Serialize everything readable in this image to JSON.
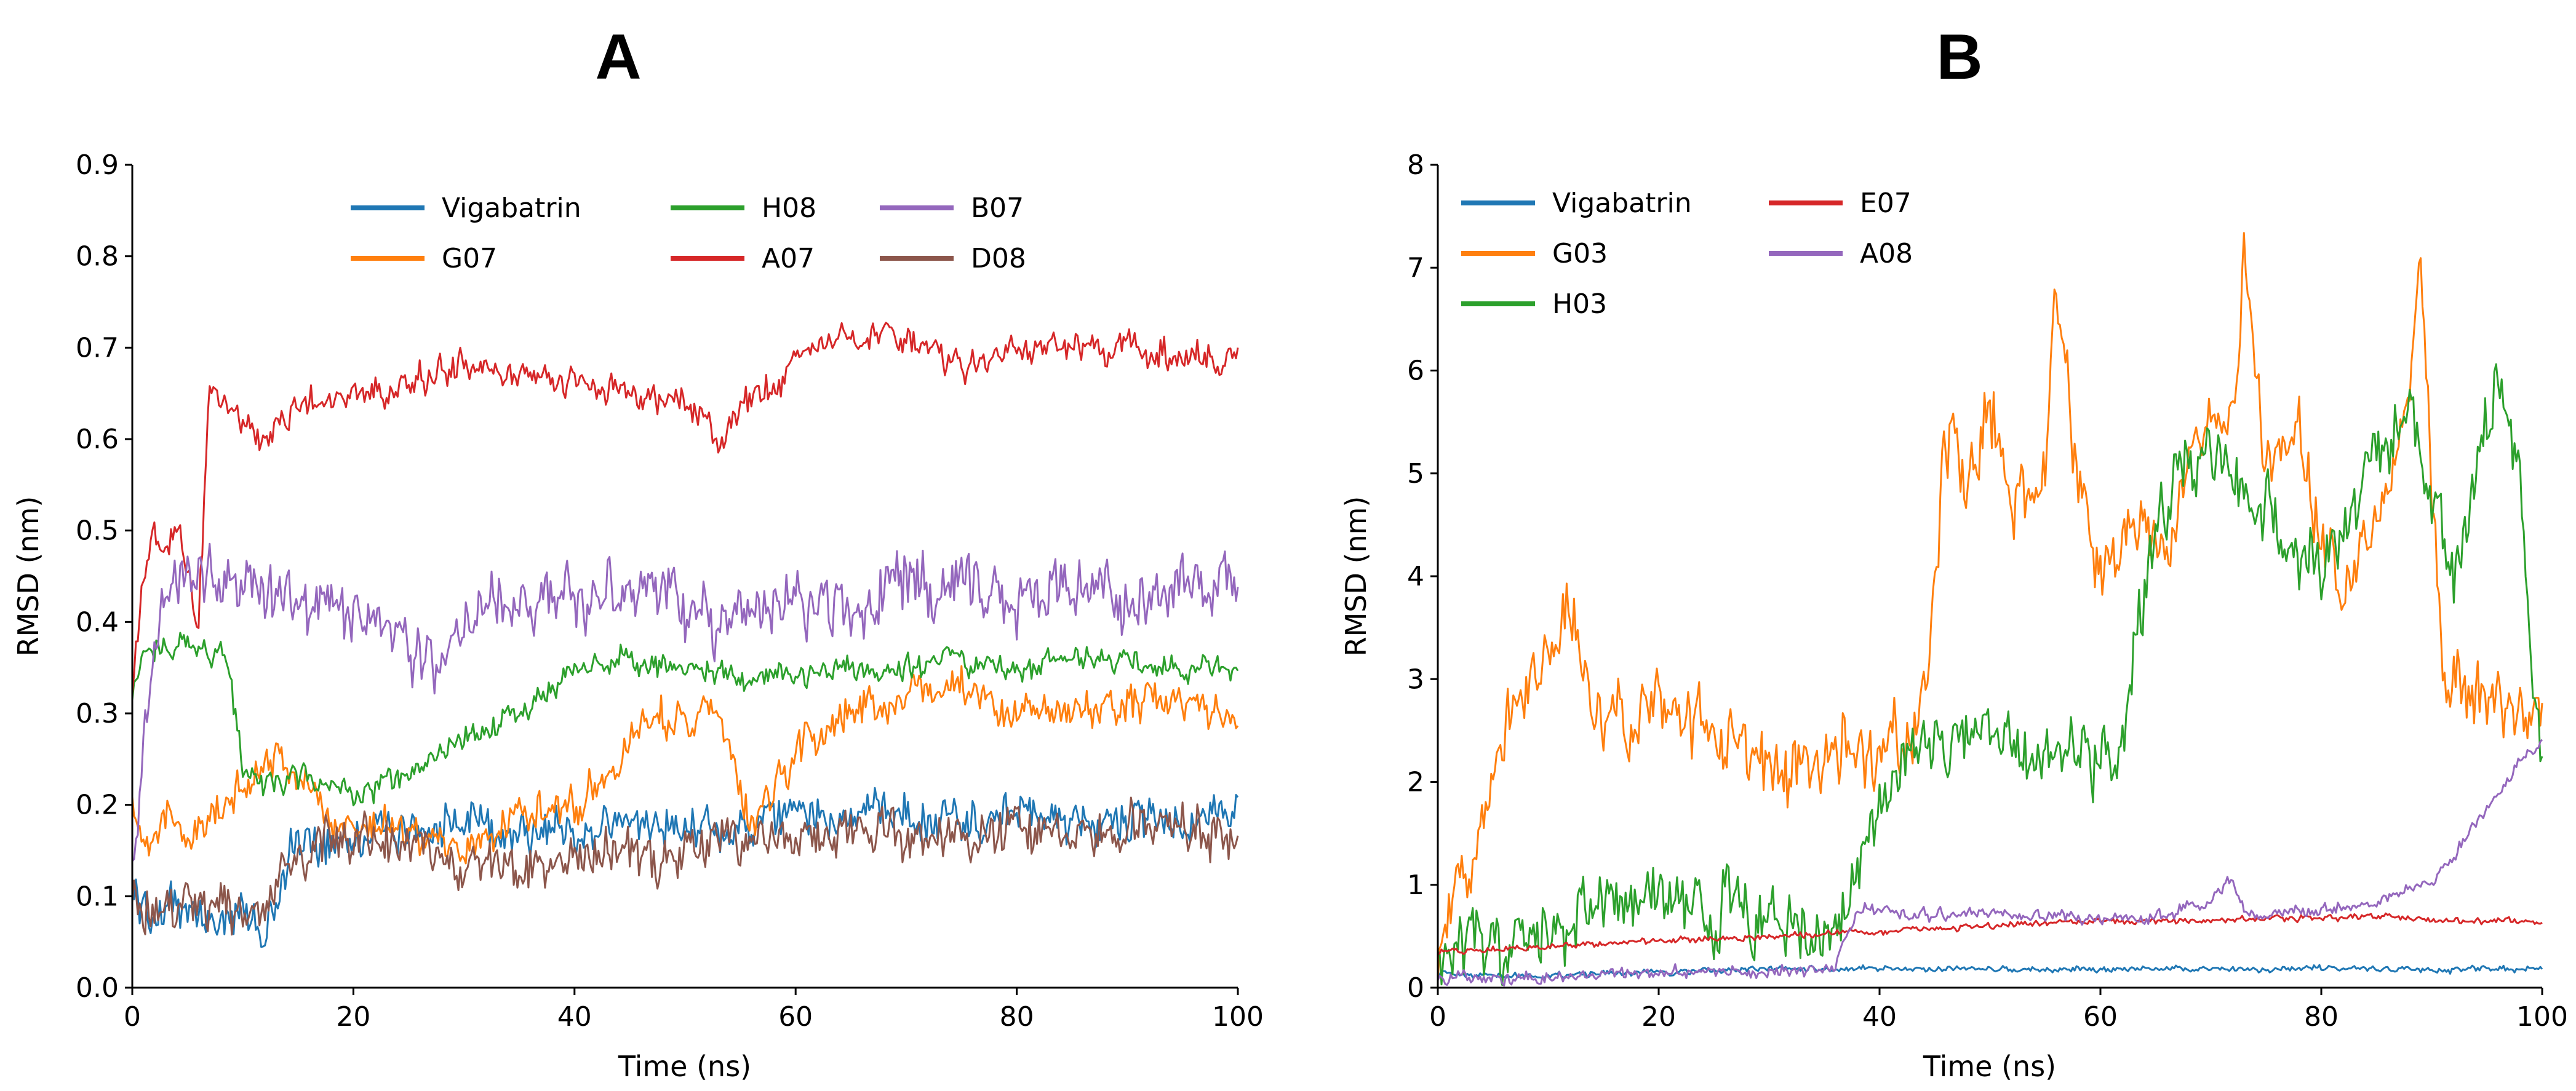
{
  "chart_data": [
    {
      "type": "line",
      "panel_label": "A",
      "title": "",
      "xlabel": "Time (ns)",
      "ylabel": "RMSD (nm)",
      "xlim": [
        0,
        100
      ],
      "ylim": [
        0,
        0.9
      ],
      "xticks": [
        0,
        20,
        40,
        60,
        80,
        100
      ],
      "xtick_labels": [
        "0",
        "20",
        "40",
        "60",
        "80",
        "100"
      ],
      "yticks": [
        0.0,
        0.1,
        0.2,
        0.3,
        0.4,
        0.5,
        0.6,
        0.7,
        0.8,
        0.9
      ],
      "ytick_labels": [
        "0.0",
        "0.1",
        "0.2",
        "0.3",
        "0.4",
        "0.5",
        "0.6",
        "0.7",
        "0.8",
        "0.9"
      ],
      "grid": false,
      "legend_position": "top-center",
      "series": [
        {
          "name": "Vigabatrin",
          "color": "#1f77b4",
          "x": [
            0,
            2,
            5,
            8,
            10,
            12,
            14,
            16,
            20,
            25,
            30,
            35,
            40,
            45,
            50,
            55,
            60,
            65,
            70,
            75,
            80,
            85,
            90,
            95,
            100
          ],
          "values": [
            0.1,
            0.08,
            0.09,
            0.07,
            0.08,
            0.06,
            0.14,
            0.16,
            0.17,
            0.17,
            0.18,
            0.17,
            0.17,
            0.18,
            0.18,
            0.17,
            0.19,
            0.19,
            0.19,
            0.18,
            0.19,
            0.18,
            0.18,
            0.18,
            0.19
          ],
          "noise": 0.025
        },
        {
          "name": "G07",
          "color": "#ff7f0e",
          "x": [
            0,
            1,
            3,
            6,
            9,
            12,
            15,
            18,
            22,
            26,
            30,
            35,
            40,
            44,
            47,
            50,
            53,
            56,
            60,
            64,
            68,
            72,
            76,
            80,
            85,
            90,
            95,
            100
          ],
          "values": [
            0.2,
            0.17,
            0.18,
            0.17,
            0.2,
            0.26,
            0.23,
            0.18,
            0.18,
            0.17,
            0.15,
            0.19,
            0.2,
            0.25,
            0.3,
            0.29,
            0.3,
            0.17,
            0.26,
            0.3,
            0.31,
            0.33,
            0.32,
            0.3,
            0.3,
            0.31,
            0.32,
            0.29
          ],
          "noise": 0.022
        },
        {
          "name": "H08",
          "color": "#2ca02c",
          "x": [
            0,
            1,
            3,
            6,
            8,
            9,
            10,
            12,
            15,
            20,
            25,
            30,
            33,
            35,
            38,
            40,
            45,
            50,
            55,
            60,
            65,
            70,
            75,
            80,
            85,
            90,
            95,
            100
          ],
          "values": [
            0.32,
            0.36,
            0.38,
            0.37,
            0.37,
            0.33,
            0.24,
            0.22,
            0.23,
            0.21,
            0.23,
            0.27,
            0.29,
            0.3,
            0.33,
            0.35,
            0.36,
            0.35,
            0.34,
            0.34,
            0.35,
            0.35,
            0.36,
            0.35,
            0.36,
            0.36,
            0.35,
            0.35
          ],
          "noise": 0.015
        },
        {
          "name": "A07",
          "color": "#d62728",
          "x": [
            0,
            1,
            2,
            3,
            4,
            5,
            6,
            7,
            8,
            10,
            12,
            15,
            20,
            25,
            30,
            35,
            40,
            45,
            50,
            53,
            55,
            58,
            60,
            63,
            65,
            70,
            75,
            80,
            85,
            90,
            95,
            100
          ],
          "values": [
            0.32,
            0.45,
            0.5,
            0.47,
            0.51,
            0.45,
            0.4,
            0.66,
            0.64,
            0.62,
            0.6,
            0.64,
            0.65,
            0.66,
            0.68,
            0.67,
            0.66,
            0.65,
            0.64,
            0.6,
            0.64,
            0.66,
            0.69,
            0.7,
            0.71,
            0.71,
            0.68,
            0.7,
            0.7,
            0.7,
            0.69,
            0.69
          ],
          "noise": 0.018
        },
        {
          "name": "B07",
          "color": "#9467bd",
          "x": [
            0,
            1,
            2,
            4,
            6,
            10,
            15,
            20,
            25,
            28,
            30,
            35,
            40,
            45,
            48,
            50,
            55,
            60,
            65,
            70,
            75,
            80,
            85,
            90,
            95,
            100
          ],
          "values": [
            0.12,
            0.28,
            0.38,
            0.46,
            0.45,
            0.44,
            0.42,
            0.41,
            0.37,
            0.36,
            0.4,
            0.42,
            0.42,
            0.43,
            0.46,
            0.4,
            0.41,
            0.42,
            0.42,
            0.44,
            0.44,
            0.43,
            0.44,
            0.43,
            0.44,
            0.43
          ],
          "noise": 0.035
        },
        {
          "name": "D08",
          "color": "#8c564b",
          "x": [
            0,
            2,
            5,
            8,
            10,
            12,
            14,
            16,
            20,
            25,
            30,
            35,
            40,
            45,
            50,
            55,
            60,
            65,
            70,
            75,
            80,
            85,
            90,
            95,
            100
          ],
          "values": [
            0.1,
            0.09,
            0.1,
            0.09,
            0.08,
            0.09,
            0.13,
            0.15,
            0.17,
            0.15,
            0.13,
            0.13,
            0.14,
            0.15,
            0.15,
            0.16,
            0.17,
            0.17,
            0.17,
            0.16,
            0.17,
            0.18,
            0.17,
            0.17,
            0.17
          ],
          "noise": 0.028
        }
      ],
      "legend": {
        "rows": [
          [
            "Vigabatrin",
            "H08",
            "B07"
          ],
          [
            "G07",
            "A07",
            "D08"
          ]
        ]
      }
    },
    {
      "type": "line",
      "panel_label": "B",
      "title": "",
      "xlabel": "Time (ns)",
      "ylabel": "RMSD (nm)",
      "xlim": [
        0,
        100
      ],
      "ylim": [
        0,
        8
      ],
      "xticks": [
        0,
        20,
        40,
        60,
        80,
        100
      ],
      "xtick_labels": [
        "0",
        "20",
        "40",
        "60",
        "80",
        "100"
      ],
      "yticks": [
        0,
        1,
        2,
        3,
        4,
        5,
        6,
        7,
        8
      ],
      "ytick_labels": [
        "0",
        "1",
        "2",
        "3",
        "4",
        "5",
        "6",
        "7",
        "8"
      ],
      "grid": false,
      "legend_position": "top-left",
      "series": [
        {
          "name": "Vigabatrin",
          "color": "#1f77b4",
          "x": [
            0,
            5,
            10,
            20,
            30,
            40,
            50,
            60,
            70,
            80,
            90,
            100
          ],
          "values": [
            0.15,
            0.12,
            0.12,
            0.15,
            0.18,
            0.18,
            0.18,
            0.18,
            0.18,
            0.18,
            0.18,
            0.18
          ],
          "noise": 0.03
        },
        {
          "name": "G03",
          "color": "#ff7f0e",
          "x": [
            0,
            1,
            2,
            4,
            6,
            8,
            10,
            12,
            14,
            16,
            18,
            20,
            22,
            25,
            28,
            30,
            33,
            36,
            40,
            43,
            44,
            45,
            46,
            48,
            50,
            52,
            55,
            56,
            58,
            60,
            62,
            64,
            66,
            68,
            70,
            72,
            73,
            75,
            78,
            80,
            82,
            84,
            86,
            88,
            89,
            90,
            91,
            93,
            95,
            97,
            100
          ],
          "values": [
            0.3,
            0.6,
            1.0,
            1.8,
            2.6,
            3.0,
            3.3,
            3.6,
            2.8,
            2.7,
            2.5,
            2.9,
            2.6,
            2.5,
            2.3,
            2.1,
            2.1,
            2.2,
            2.3,
            2.4,
            2.8,
            3.7,
            5.5,
            4.8,
            5.8,
            4.6,
            5.0,
            6.8,
            4.8,
            4.0,
            4.3,
            4.5,
            4.2,
            5.0,
            5.7,
            5.6,
            7.0,
            5.0,
            5.5,
            4.3,
            4.0,
            4.4,
            5.0,
            6.0,
            7.0,
            5.0,
            3.0,
            2.8,
            2.8,
            2.75,
            2.7
          ],
          "noise": 0.35
        },
        {
          "name": "H03",
          "color": "#2ca02c",
          "x": [
            0,
            2,
            4,
            6,
            8,
            10,
            12,
            15,
            18,
            20,
            23,
            25,
            26,
            28,
            30,
            33,
            36,
            37,
            38,
            40,
            42,
            45,
            50,
            55,
            60,
            62,
            63,
            64,
            65,
            67,
            70,
            72,
            75,
            78,
            80,
            82,
            85,
            88,
            90,
            92,
            94,
            96,
            98,
            99,
            100
          ],
          "values": [
            0.4,
            0.45,
            0.45,
            0.4,
            0.45,
            0.5,
            0.55,
            0.8,
            0.85,
            0.9,
            0.9,
            0.6,
            0.85,
            0.6,
            0.6,
            0.55,
            0.6,
            0.7,
            1.2,
            1.9,
            2.2,
            2.3,
            2.4,
            2.2,
            2.3,
            2.4,
            3.3,
            4.0,
            4.5,
            5.0,
            5.2,
            5.0,
            4.7,
            4.2,
            4.0,
            4.5,
            5.2,
            5.5,
            4.8,
            4.0,
            5.0,
            6.0,
            5.0,
            3.0,
            2.3
          ],
          "noise": 0.35
        },
        {
          "name": "E07",
          "color": "#d62728",
          "x": [
            0,
            10,
            20,
            30,
            40,
            50,
            60,
            70,
            80,
            85,
            90,
            100
          ],
          "values": [
            0.35,
            0.4,
            0.45,
            0.5,
            0.55,
            0.6,
            0.65,
            0.65,
            0.68,
            0.7,
            0.65,
            0.65
          ],
          "noise": 0.03
        },
        {
          "name": "A08",
          "color": "#9467bd",
          "x": [
            0,
            10,
            20,
            30,
            36,
            37,
            38,
            40,
            45,
            50,
            55,
            60,
            65,
            70,
            72,
            73,
            75,
            80,
            85,
            88,
            90,
            92,
            94,
            96,
            98,
            100
          ],
          "values": [
            0.1,
            0.1,
            0.15,
            0.15,
            0.2,
            0.5,
            0.75,
            0.75,
            0.7,
            0.7,
            0.7,
            0.65,
            0.7,
            0.85,
            1.05,
            0.75,
            0.7,
            0.75,
            0.85,
            0.95,
            1.0,
            1.3,
            1.6,
            1.9,
            2.2,
            2.4
          ],
          "noise": 0.06
        }
      ],
      "legend": {
        "rows": [
          [
            "Vigabatrin",
            "E07"
          ],
          [
            "G03",
            "A08"
          ],
          [
            "H03"
          ]
        ]
      }
    }
  ]
}
